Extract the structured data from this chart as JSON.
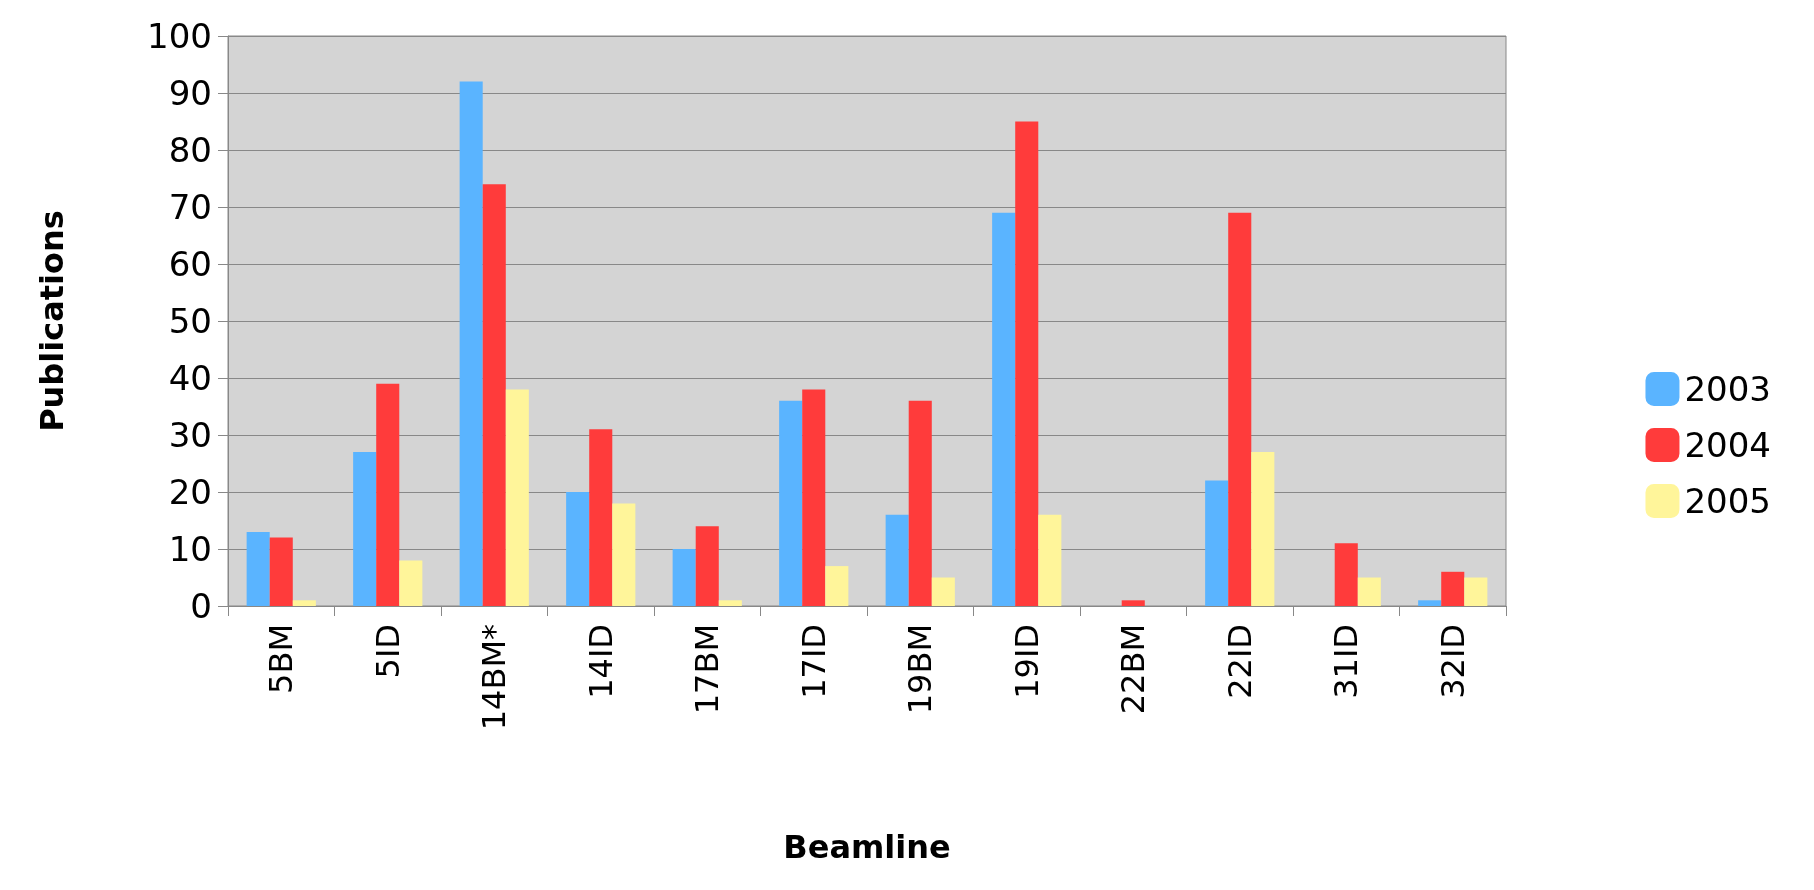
{
  "chart_data": {
    "type": "bar",
    "xlabel": "Beamline",
    "ylabel": "Publications",
    "categories": [
      "5BM",
      "5ID",
      "14BM*",
      "14ID",
      "17BM",
      "17ID",
      "19BM",
      "19ID",
      "22BM",
      "22ID",
      "31ID",
      "32ID"
    ],
    "series": [
      {
        "name": "2003",
        "color": "#5ab4ff",
        "values": [
          13,
          27,
          92,
          20,
          10,
          36,
          16,
          69,
          0,
          22,
          0,
          1
        ]
      },
      {
        "name": "2004",
        "color": "#ff3b3b",
        "values": [
          12,
          39,
          74,
          31,
          14,
          38,
          36,
          85,
          1,
          69,
          11,
          6
        ]
      },
      {
        "name": "2005",
        "color": "#fff59a",
        "values": [
          1,
          8,
          38,
          18,
          1,
          7,
          5,
          16,
          0,
          27,
          5,
          5
        ]
      }
    ],
    "ylim": [
      0,
      100
    ],
    "yticks": [
      0,
      10,
      20,
      30,
      40,
      50,
      60,
      70,
      80,
      90,
      100
    ],
    "grid": "y",
    "legend": "right"
  }
}
